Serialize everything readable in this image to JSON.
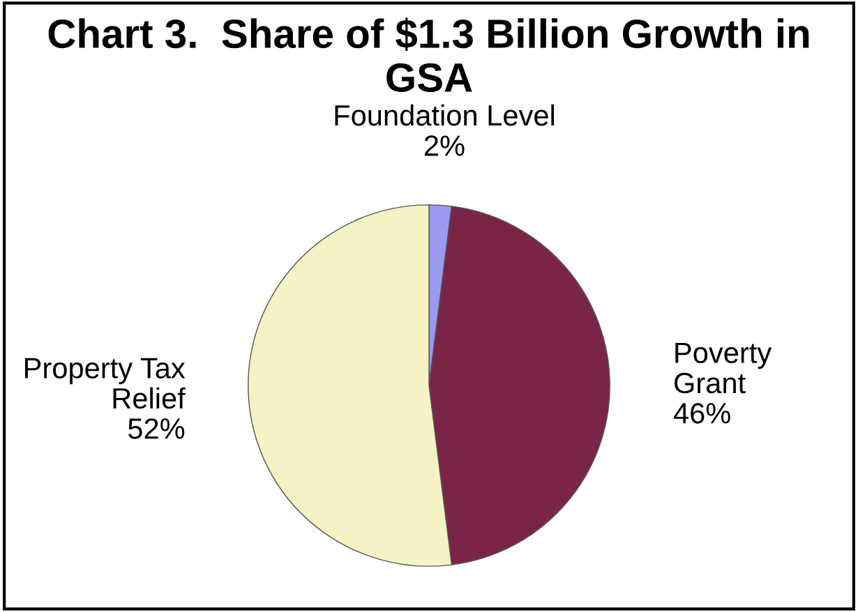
{
  "chart_data": {
    "type": "pie",
    "title": "Chart 3.  Share of $1.3 Billion Growth in GSA",
    "categories": [
      "Foundation Level",
      "Poverty\nGrant",
      "Property Tax\nRelief"
    ],
    "values": [
      2,
      46,
      52
    ],
    "colors": [
      "#9a9af0",
      "#7a2548",
      "#f5f2c4"
    ],
    "value_labels": [
      "2%",
      "46%",
      "52%"
    ],
    "legend": false
  }
}
